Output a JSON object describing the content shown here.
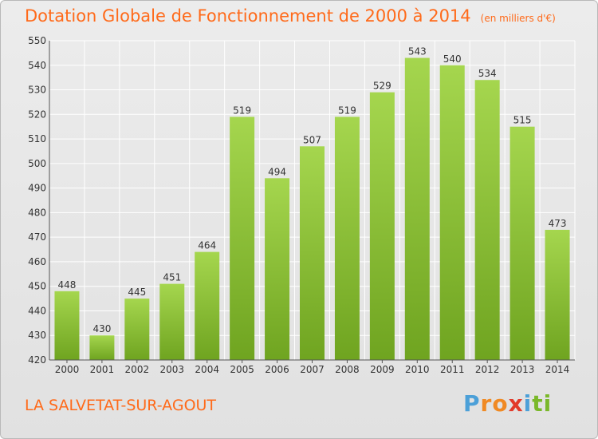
{
  "header": {
    "title": "Dotation Globale de Fonctionnement de 2000 à 2014",
    "subtitle": "(en milliers d'€)"
  },
  "footer": {
    "commune": "LA SALVETAT-SUR-AGOUT",
    "logo_letters": [
      "P",
      "r",
      "o",
      "x",
      "i",
      "t",
      "i"
    ]
  },
  "colors": {
    "accent": "#ff6a1a",
    "bar_light": "#a5d64e",
    "bar_dark": "#6fa420",
    "grid": "#ffffff",
    "logo": [
      "#4ca0d8",
      "#f08a24",
      "#f08a24",
      "#e23a2a",
      "#4ca0d8",
      "#7ab82a",
      "#7ab82a"
    ]
  },
  "chart_data": {
    "type": "bar",
    "title": "Dotation Globale de Fonctionnement de 2000 à 2014",
    "subtitle": "(en milliers d'€)",
    "categories": [
      "2000",
      "2001",
      "2002",
      "2003",
      "2004",
      "2005",
      "2006",
      "2007",
      "2008",
      "2009",
      "2010",
      "2011",
      "2012",
      "2013",
      "2014"
    ],
    "values": [
      448,
      430,
      445,
      451,
      464,
      519,
      494,
      507,
      519,
      529,
      543,
      540,
      534,
      515,
      473
    ],
    "ylim": [
      420,
      550
    ],
    "yticks": [
      420,
      430,
      440,
      450,
      460,
      470,
      480,
      490,
      500,
      510,
      520,
      530,
      540,
      550
    ],
    "grid": true,
    "data_labels": true
  }
}
